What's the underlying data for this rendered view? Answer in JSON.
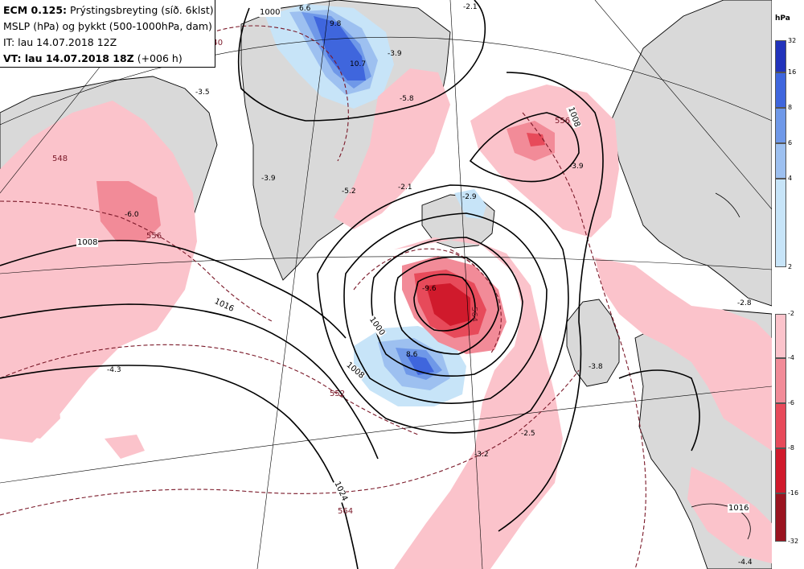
{
  "header": {
    "line1_bold": "ECM 0.125:",
    "line1_rest": " Prýstingsbreyting (síð. 6klst)",
    "line2": "MSLP (hPa) og þykkt (500-1000hPa, dam)",
    "line3": "IT: lau 14.07.2018 12Z",
    "line4_bold": "VT: lau 14.07.2018 18Z",
    "line4_rest": " (+006 h)"
  },
  "legend": {
    "unit": "hPa",
    "positive": [
      {
        "label": "32",
        "color": "#2233bb"
      },
      {
        "label": "16",
        "color": "#3f66dd"
      },
      {
        "label": "8",
        "color": "#6f98e8"
      },
      {
        "label": "6",
        "color": "#9dc0f0"
      },
      {
        "label": "4",
        "color": "#c7e4f8"
      },
      {
        "label": "2",
        "color": ""
      }
    ],
    "negative": [
      {
        "label": "-2",
        "color": "#fbc3cb"
      },
      {
        "label": "-4",
        "color": "#f28b98"
      },
      {
        "label": "-6",
        "color": "#e74a5a"
      },
      {
        "label": "-8",
        "color": "#d01a2c"
      },
      {
        "label": "-16",
        "color": "#9a1420"
      },
      {
        "label": "-32",
        "color": ""
      }
    ]
  },
  "isobar_labels": [
    "1000",
    "1008",
    "1016",
    "1024",
    "1008",
    "1000",
    "1008",
    "1016"
  ],
  "thickness_labels": [
    "540",
    "548",
    "556",
    "564",
    "552",
    "564",
    "556"
  ],
  "change_labels": [
    "6.6",
    "9.8",
    "10.7",
    "-3.9",
    "-3.5",
    "-3.9",
    "-5.2",
    "-2.1",
    "-2.9",
    "-5.8",
    "-3.9",
    "-6.0",
    "-2.1",
    "-9.6",
    "8.6",
    "-4.3",
    "-2.8",
    "-3.8",
    "-2.5",
    "-3.2",
    "-4.4",
    "2.1"
  ]
}
